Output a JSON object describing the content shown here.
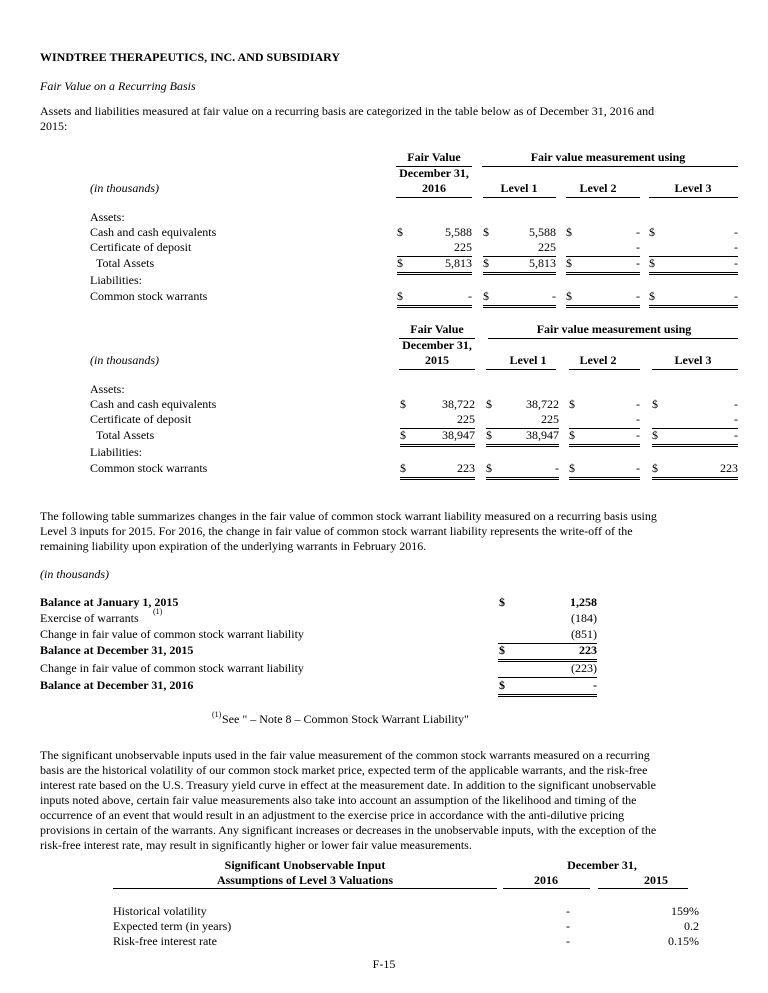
{
  "title": "WINDTREE THERAPEUTICS, INC. AND SUBSIDIARY",
  "subtitle": "Fair Value on a Recurring Basis",
  "intro_lines": [
    "Assets and liabilities measured at fair value on a recurring basis are categorized in the table below as of December 31, 2016 and",
    "2015:"
  ],
  "tables": [
    {
      "units": "(in thousands)",
      "fair_value": "Fair Value",
      "date": "December 31,",
      "year": "2016",
      "measurement": "Fair value measurement using",
      "levels": [
        "Level 1",
        "Level 2",
        "Level 3"
      ],
      "rows": [
        {
          "label": "Assets:",
          "cells": []
        },
        {
          "label": "Cash and cash equivalents",
          "cells": [
            {
              "d": "$",
              "v": "5,588"
            },
            {
              "d": "$",
              "v": "5,588"
            },
            {
              "d": "$",
              "v": "-"
            },
            {
              "d": "$",
              "v": "-"
            }
          ]
        },
        {
          "label": "Certificate of deposit",
          "cells": [
            {
              "d": "",
              "v": "225"
            },
            {
              "d": "",
              "v": "225"
            },
            {
              "d": "",
              "v": "-"
            },
            {
              "d": "",
              "v": "-"
            }
          ],
          "under": "single"
        },
        {
          "label": "Total Assets",
          "indent": true,
          "cells": [
            {
              "d": "$",
              "v": "5,813"
            },
            {
              "d": "$",
              "v": "5,813"
            },
            {
              "d": "$",
              "v": "-"
            },
            {
              "d": "$",
              "v": "-"
            }
          ],
          "under": "double"
        },
        {
          "label": "Liabilities:",
          "cells": []
        },
        {
          "label": "Common stock warrants",
          "cells": [
            {
              "d": "$",
              "v": "-"
            },
            {
              "d": "$",
              "v": "-"
            },
            {
              "d": "$",
              "v": "-"
            },
            {
              "d": "$",
              "v": "-"
            }
          ],
          "under": "double"
        }
      ]
    },
    {
      "units": "(in thousands)",
      "fair_value": "Fair Value",
      "date": "December 31,",
      "year": "2015",
      "measurement": "Fair value measurement using",
      "levels": [
        "Level 1",
        "Level 2",
        "Level 3"
      ],
      "rows": [
        {
          "label": "Assets:",
          "cells": []
        },
        {
          "label": "Cash and cash equivalents",
          "cells": [
            {
              "d": "$",
              "v": "38,722"
            },
            {
              "d": "$",
              "v": "38,722"
            },
            {
              "d": "$",
              "v": "-"
            },
            {
              "d": "$",
              "v": "-"
            }
          ]
        },
        {
          "label": "Certificate of deposit",
          "cells": [
            {
              "d": "",
              "v": "225"
            },
            {
              "d": "",
              "v": "225"
            },
            {
              "d": "",
              "v": "-"
            },
            {
              "d": "",
              "v": "-"
            }
          ],
          "under": "single"
        },
        {
          "label": "Total Assets",
          "indent": true,
          "cells": [
            {
              "d": "$",
              "v": "38,947"
            },
            {
              "d": "$",
              "v": "38,947"
            },
            {
              "d": "$",
              "v": "-"
            },
            {
              "d": "$",
              "v": "-"
            }
          ],
          "under": "double"
        },
        {
          "label": "Liabilities:",
          "cells": []
        },
        {
          "label": "Common stock warrants",
          "cells": [
            {
              "d": "$",
              "v": "223"
            },
            {
              "d": "$",
              "v": "-"
            },
            {
              "d": "$",
              "v": "-"
            },
            {
              "d": "$",
              "v": "223"
            }
          ],
          "under": "double"
        }
      ]
    }
  ],
  "rollforward_intro_lines": [
    "The following table summarizes changes in the fair value of common stock warrant liability measured on a recurring basis using",
    "Level 3 inputs for 2015. For 2016, the change in fair value of common stock warrant liability represents the write-off of the",
    "remaining liability upon expiration of the underlying warrants in February 2016."
  ],
  "rollforward": {
    "units": "(in thousands)",
    "rows": [
      {
        "label": "Balance at January 1, 2015",
        "bold": true,
        "d": "$",
        "v": "1,258"
      },
      {
        "label": "Exercise of warrants",
        "sup": "(1)",
        "d": "",
        "v": "(184)"
      },
      {
        "label": "Change in fair value of common stock warrant liability",
        "d": "",
        "v": "(851)",
        "under": "single"
      },
      {
        "label": "Balance at December 31, 2015",
        "bold": true,
        "d": "$",
        "v": "223",
        "under": "double"
      },
      {
        "label": "Change in fair value of common stock warrant liability",
        "d": "",
        "v": "(223)",
        "under": "single"
      },
      {
        "label": "Balance at December 31, 2016",
        "bold": true,
        "d": "$",
        "v": "-",
        "under": "double"
      }
    ],
    "footnote_mark": "(1)",
    "footnote": "See \" – Note 8 – Common Stock Warrant Liability\""
  },
  "inputs_intro_lines": [
    "The significant unobservable inputs used in the fair value measurement of the common stock warrants measured on a recurring",
    "basis are the historical volatility of our common stock market price, expected term of the applicable warrants, and the risk-free",
    "interest rate based on the U.S. Treasury yield curve in effect at the measurement date. In addition to the significant unobservable",
    "inputs noted above, certain fair value measurements also take into account an assumption of the likelihood and timing of the",
    "occurrence of an event that would result in an adjustment to the exercise price in accordance with the anti-dilutive pricing",
    "provisions in certain of the warrants. Any significant increases or decreases in the unobservable inputs, with the exception of the",
    "risk-free interest rate, may result in significantly higher or lower fair value measurements."
  ],
  "inputs_table": {
    "header_lines": [
      "Significant Unobservable Input",
      "Assumptions of Level 3 Valuations"
    ],
    "date": "December 31,",
    "years": [
      "2016",
      "2015"
    ],
    "rows": [
      {
        "label": "Historical volatility",
        "v2016": "-",
        "v2015": "159%"
      },
      {
        "label": "Expected term (in years)",
        "v2016": "-",
        "v2015": "0.2"
      },
      {
        "label": "Risk-free interest rate",
        "v2016": "-",
        "v2015": "0.15%"
      }
    ]
  },
  "page_number": "F-15"
}
